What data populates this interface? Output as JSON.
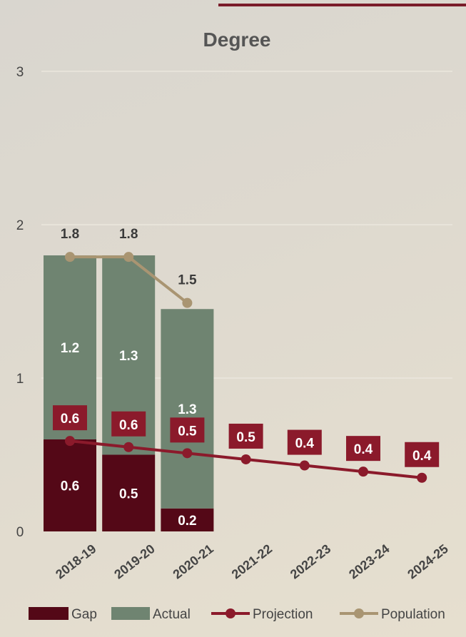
{
  "colors": {
    "gap": "#540817",
    "actual": "#6f8471",
    "projection": "#8b1a2b",
    "population": "#a99572",
    "label_text": "#3a3a3a",
    "tick_text": "#444444",
    "gridline": "#ebe7de",
    "accent_rule": "#7a1c2a"
  },
  "chart_data": {
    "type": "bar",
    "title": "Degree",
    "xlabel": "",
    "ylabel": "",
    "ylim": [
      0,
      3
    ],
    "yticks": [
      "0",
      "1",
      "2",
      "3"
    ],
    "grid": true,
    "legend_position": "bottom",
    "categories": [
      "2018-19",
      "2019-20",
      "2020-21",
      "2021-22",
      "2022-23",
      "2023-24",
      "2024-25"
    ],
    "series": [
      {
        "name": "Gap",
        "kind": "stacked-bar",
        "values": [
          0.6,
          0.5,
          0.15,
          null,
          null,
          null,
          null
        ],
        "labels": [
          "0.6",
          "0.5",
          "0.2",
          "",
          "",
          "",
          ""
        ]
      },
      {
        "name": "Actual",
        "kind": "stacked-bar",
        "values": [
          1.2,
          1.3,
          1.3,
          null,
          null,
          null,
          null
        ],
        "labels": [
          "1.2",
          "1.3",
          "1.3",
          "",
          "",
          "",
          ""
        ]
      },
      {
        "name": "Projection",
        "kind": "line",
        "values": [
          0.59,
          0.55,
          0.51,
          0.47,
          0.43,
          0.39,
          0.35
        ],
        "labels": [
          "0.6",
          "0.6",
          "0.5",
          "0.5",
          "0.4",
          "0.4",
          "0.4"
        ]
      },
      {
        "name": "Population",
        "kind": "line",
        "values": [
          1.79,
          1.79,
          1.49,
          null,
          null,
          null,
          null
        ],
        "labels": [
          "1.8",
          "1.8",
          "1.5",
          "",
          "",
          "",
          ""
        ]
      }
    ]
  }
}
